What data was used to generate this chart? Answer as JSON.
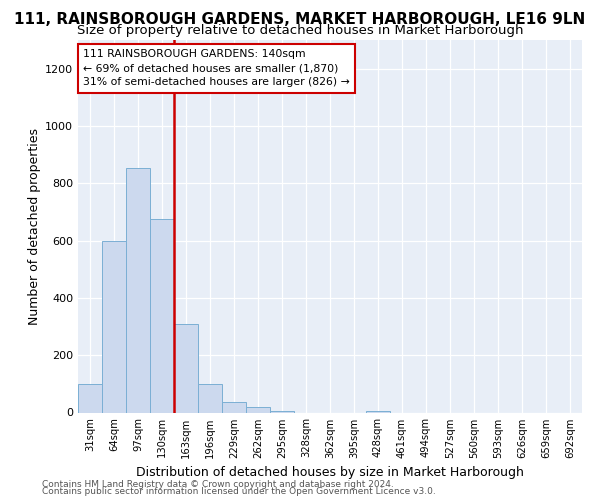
{
  "title1": "111, RAINSBOROUGH GARDENS, MARKET HARBOROUGH, LE16 9LN",
  "title2": "Size of property relative to detached houses in Market Harborough",
  "xlabel": "Distribution of detached houses by size in Market Harborough",
  "ylabel": "Number of detached properties",
  "footnote1": "Contains HM Land Registry data © Crown copyright and database right 2024.",
  "footnote2": "Contains public sector information licensed under the Open Government Licence v3.0.",
  "categories": [
    "31sqm",
    "64sqm",
    "97sqm",
    "130sqm",
    "163sqm",
    "196sqm",
    "229sqm",
    "262sqm",
    "295sqm",
    "328sqm",
    "362sqm",
    "395sqm",
    "428sqm",
    "461sqm",
    "494sqm",
    "527sqm",
    "560sqm",
    "593sqm",
    "626sqm",
    "659sqm",
    "692sqm"
  ],
  "values": [
    100,
    600,
    855,
    675,
    310,
    100,
    35,
    18,
    5,
    0,
    0,
    0,
    5,
    0,
    0,
    0,
    0,
    0,
    0,
    0,
    0
  ],
  "bar_color": "#ccd9ee",
  "bar_edge_color": "#7bafd4",
  "highlight_index": 3,
  "highlight_line_color": "#cc0000",
  "annotation_line1": "111 RAINSBOROUGH GARDENS: 140sqm",
  "annotation_line2": "← 69% of detached houses are smaller (1,870)",
  "annotation_line3": "31% of semi-detached houses are larger (826) →",
  "annotation_box_color": "#ffffff",
  "annotation_border_color": "#cc0000",
  "ylim": [
    0,
    1300
  ],
  "yticks": [
    0,
    200,
    400,
    600,
    800,
    1000,
    1200
  ],
  "bg_color": "#e8eef7",
  "title1_fontsize": 11,
  "title2_fontsize": 9.5,
  "xlabel_fontsize": 9,
  "ylabel_fontsize": 9,
  "footnote_fontsize": 6.5
}
